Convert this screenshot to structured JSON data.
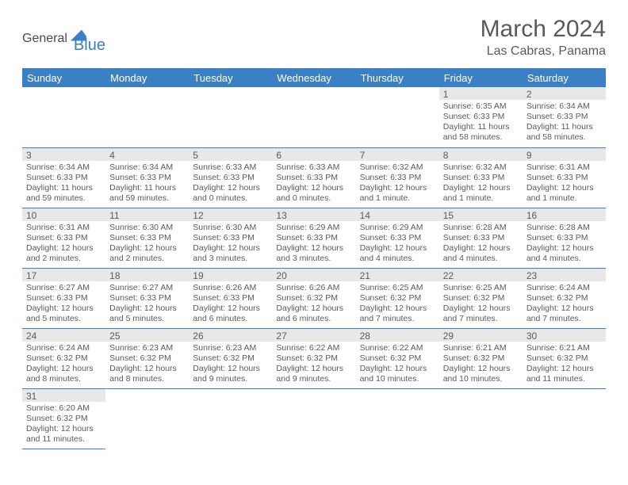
{
  "logo": {
    "part1": "General",
    "part2": "Blue"
  },
  "title": "March 2024",
  "location": "Las Cabras, Panama",
  "colors": {
    "header_bg": "#3b7fc4",
    "header_text": "#ffffff",
    "daynum_bg": "#e8e8e8",
    "cell_border": "#3b7fc4",
    "text": "#5a5a5a",
    "page_bg": "#ffffff"
  },
  "daysOfWeek": [
    "Sunday",
    "Monday",
    "Tuesday",
    "Wednesday",
    "Thursday",
    "Friday",
    "Saturday"
  ],
  "weeks": [
    [
      {
        "empty": true
      },
      {
        "empty": true
      },
      {
        "empty": true
      },
      {
        "empty": true
      },
      {
        "empty": true
      },
      {
        "n": "1",
        "sunrise": "6:35 AM",
        "sunset": "6:33 PM",
        "daylight": "11 hours and 58 minutes."
      },
      {
        "n": "2",
        "sunrise": "6:34 AM",
        "sunset": "6:33 PM",
        "daylight": "11 hours and 58 minutes."
      }
    ],
    [
      {
        "n": "3",
        "sunrise": "6:34 AM",
        "sunset": "6:33 PM",
        "daylight": "11 hours and 59 minutes."
      },
      {
        "n": "4",
        "sunrise": "6:34 AM",
        "sunset": "6:33 PM",
        "daylight": "11 hours and 59 minutes."
      },
      {
        "n": "5",
        "sunrise": "6:33 AM",
        "sunset": "6:33 PM",
        "daylight": "12 hours and 0 minutes."
      },
      {
        "n": "6",
        "sunrise": "6:33 AM",
        "sunset": "6:33 PM",
        "daylight": "12 hours and 0 minutes."
      },
      {
        "n": "7",
        "sunrise": "6:32 AM",
        "sunset": "6:33 PM",
        "daylight": "12 hours and 1 minute."
      },
      {
        "n": "8",
        "sunrise": "6:32 AM",
        "sunset": "6:33 PM",
        "daylight": "12 hours and 1 minute."
      },
      {
        "n": "9",
        "sunrise": "6:31 AM",
        "sunset": "6:33 PM",
        "daylight": "12 hours and 1 minute."
      }
    ],
    [
      {
        "n": "10",
        "sunrise": "6:31 AM",
        "sunset": "6:33 PM",
        "daylight": "12 hours and 2 minutes."
      },
      {
        "n": "11",
        "sunrise": "6:30 AM",
        "sunset": "6:33 PM",
        "daylight": "12 hours and 2 minutes."
      },
      {
        "n": "12",
        "sunrise": "6:30 AM",
        "sunset": "6:33 PM",
        "daylight": "12 hours and 3 minutes."
      },
      {
        "n": "13",
        "sunrise": "6:29 AM",
        "sunset": "6:33 PM",
        "daylight": "12 hours and 3 minutes."
      },
      {
        "n": "14",
        "sunrise": "6:29 AM",
        "sunset": "6:33 PM",
        "daylight": "12 hours and 4 minutes."
      },
      {
        "n": "15",
        "sunrise": "6:28 AM",
        "sunset": "6:33 PM",
        "daylight": "12 hours and 4 minutes."
      },
      {
        "n": "16",
        "sunrise": "6:28 AM",
        "sunset": "6:33 PM",
        "daylight": "12 hours and 4 minutes."
      }
    ],
    [
      {
        "n": "17",
        "sunrise": "6:27 AM",
        "sunset": "6:33 PM",
        "daylight": "12 hours and 5 minutes."
      },
      {
        "n": "18",
        "sunrise": "6:27 AM",
        "sunset": "6:33 PM",
        "daylight": "12 hours and 5 minutes."
      },
      {
        "n": "19",
        "sunrise": "6:26 AM",
        "sunset": "6:33 PM",
        "daylight": "12 hours and 6 minutes."
      },
      {
        "n": "20",
        "sunrise": "6:26 AM",
        "sunset": "6:32 PM",
        "daylight": "12 hours and 6 minutes."
      },
      {
        "n": "21",
        "sunrise": "6:25 AM",
        "sunset": "6:32 PM",
        "daylight": "12 hours and 7 minutes."
      },
      {
        "n": "22",
        "sunrise": "6:25 AM",
        "sunset": "6:32 PM",
        "daylight": "12 hours and 7 minutes."
      },
      {
        "n": "23",
        "sunrise": "6:24 AM",
        "sunset": "6:32 PM",
        "daylight": "12 hours and 7 minutes."
      }
    ],
    [
      {
        "n": "24",
        "sunrise": "6:24 AM",
        "sunset": "6:32 PM",
        "daylight": "12 hours and 8 minutes."
      },
      {
        "n": "25",
        "sunrise": "6:23 AM",
        "sunset": "6:32 PM",
        "daylight": "12 hours and 8 minutes."
      },
      {
        "n": "26",
        "sunrise": "6:23 AM",
        "sunset": "6:32 PM",
        "daylight": "12 hours and 9 minutes."
      },
      {
        "n": "27",
        "sunrise": "6:22 AM",
        "sunset": "6:32 PM",
        "daylight": "12 hours and 9 minutes."
      },
      {
        "n": "28",
        "sunrise": "6:22 AM",
        "sunset": "6:32 PM",
        "daylight": "12 hours and 10 minutes."
      },
      {
        "n": "29",
        "sunrise": "6:21 AM",
        "sunset": "6:32 PM",
        "daylight": "12 hours and 10 minutes."
      },
      {
        "n": "30",
        "sunrise": "6:21 AM",
        "sunset": "6:32 PM",
        "daylight": "12 hours and 11 minutes."
      }
    ],
    [
      {
        "n": "31",
        "sunrise": "6:20 AM",
        "sunset": "6:32 PM",
        "daylight": "12 hours and 11 minutes."
      },
      {
        "none": true
      },
      {
        "none": true
      },
      {
        "none": true
      },
      {
        "none": true
      },
      {
        "none": true
      },
      {
        "none": true
      }
    ]
  ]
}
